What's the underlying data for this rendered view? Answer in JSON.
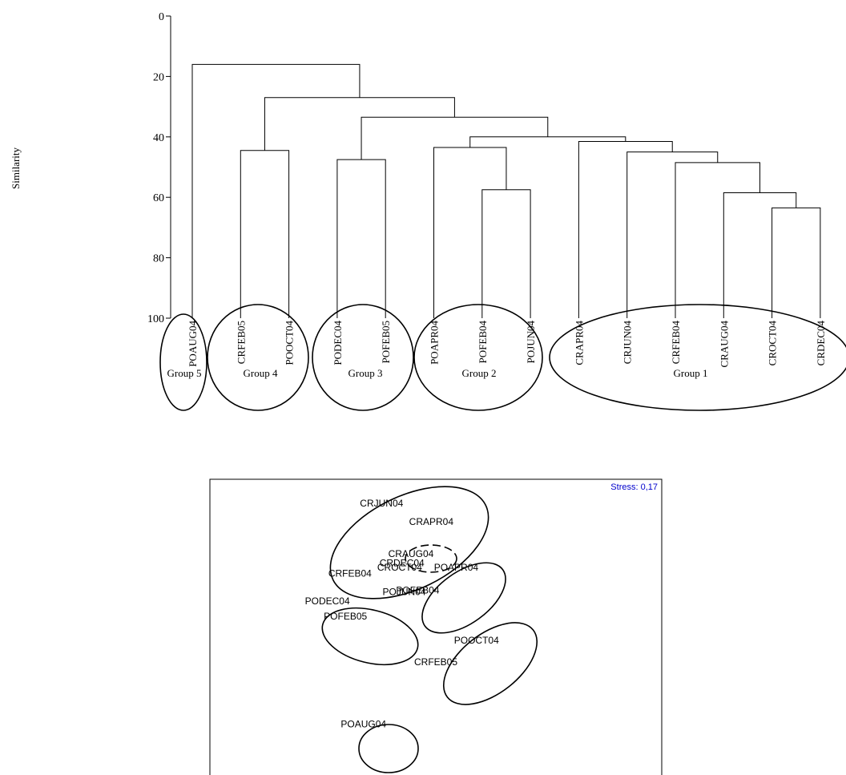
{
  "chart_data": [
    {
      "type": "dendrogram",
      "ylabel": "Similarity",
      "ylim": [
        0,
        100
      ],
      "y_ticks": [
        "0",
        "20",
        "40",
        "60",
        "80",
        "100"
      ],
      "y_tick_values": [
        0,
        20,
        40,
        60,
        80,
        100
      ],
      "leaves": [
        "POAUG04",
        "CRFEB05",
        "POOCT04",
        "PODEC04",
        "POFEB05",
        "POAPR04",
        "POFEB04",
        "POJUN04",
        "CRAPR04",
        "CRJUN04",
        "CRFEB04",
        "CRAUG04",
        "CROCT04",
        "CRDEC04"
      ],
      "merges": [
        {
          "a": "CROCT04",
          "b": "CRDEC04",
          "similarity": 63.5
        },
        {
          "a": "CRAUG04",
          "b": "m0",
          "similarity": 58.5
        },
        {
          "a": "CRFEB04",
          "b": "m1",
          "similarity": 48.5
        },
        {
          "a": "CRJUN04",
          "b": "m2",
          "similarity": 45
        },
        {
          "a": "CRAPR04",
          "b": "m3",
          "similarity": 41.5
        },
        {
          "a": "POFEB04",
          "b": "POJUN04",
          "similarity": 57.5
        },
        {
          "a": "POAPR04",
          "b": "m5",
          "similarity": 43.5
        },
        {
          "a": "m6",
          "b": "m4",
          "similarity": 40
        },
        {
          "a": "PODEC04",
          "b": "POFEB05",
          "similarity": 47.5
        },
        {
          "a": "m8",
          "b": "m7",
          "similarity": 33.5
        },
        {
          "a": "CRFEB05",
          "b": "POOCT04",
          "similarity": 44.5
        },
        {
          "a": "m10",
          "b": "m9",
          "similarity": 27
        },
        {
          "a": "POAUG04",
          "b": "m11",
          "similarity": 16
        }
      ],
      "groups": [
        {
          "name": "Group 5",
          "members": [
            "POAUG04"
          ]
        },
        {
          "name": "Group 4",
          "members": [
            "CRFEB05",
            "POOCT04"
          ]
        },
        {
          "name": "Group 3",
          "members": [
            "PODEC04",
            "POFEB05"
          ]
        },
        {
          "name": "Group 2",
          "members": [
            "POAPR04",
            "POFEB04",
            "POJUN04"
          ]
        },
        {
          "name": "Group 1",
          "members": [
            "CRAPR04",
            "CRJUN04",
            "CRFEB04",
            "CRAUG04",
            "CROCT04",
            "CRDEC04"
          ]
        }
      ]
    },
    {
      "type": "scatter",
      "annotation": "Stress: 0,17",
      "annotation_color": "#0000cc",
      "axes_labeled": false,
      "points": [
        {
          "label": "CRJUN04",
          "x": -0.24,
          "y": 0.82
        },
        {
          "label": "CRAPR04",
          "x": -0.02,
          "y": 0.7
        },
        {
          "label": "CRAUG04",
          "x": -0.11,
          "y": 0.49
        },
        {
          "label": "CRDEC04",
          "x": -0.15,
          "y": 0.43
        },
        {
          "label": "CROCT04",
          "x": -0.16,
          "y": 0.4
        },
        {
          "label": "CRFEB04",
          "x": -0.38,
          "y": 0.36
        },
        {
          "label": "POAPR04",
          "x": 0.09,
          "y": 0.4
        },
        {
          "label": "POFEB04",
          "x": -0.08,
          "y": 0.25
        },
        {
          "label": "POJUN04",
          "x": -0.14,
          "y": 0.24
        },
        {
          "label": "PODEC04",
          "x": -0.48,
          "y": 0.18
        },
        {
          "label": "POFEB05",
          "x": -0.4,
          "y": 0.08
        },
        {
          "label": "POOCT04",
          "x": 0.18,
          "y": -0.08
        },
        {
          "label": "CRFEB05",
          "x": 0.0,
          "y": -0.22
        },
        {
          "label": "POAUG04",
          "x": -0.32,
          "y": -0.63
        }
      ]
    }
  ]
}
